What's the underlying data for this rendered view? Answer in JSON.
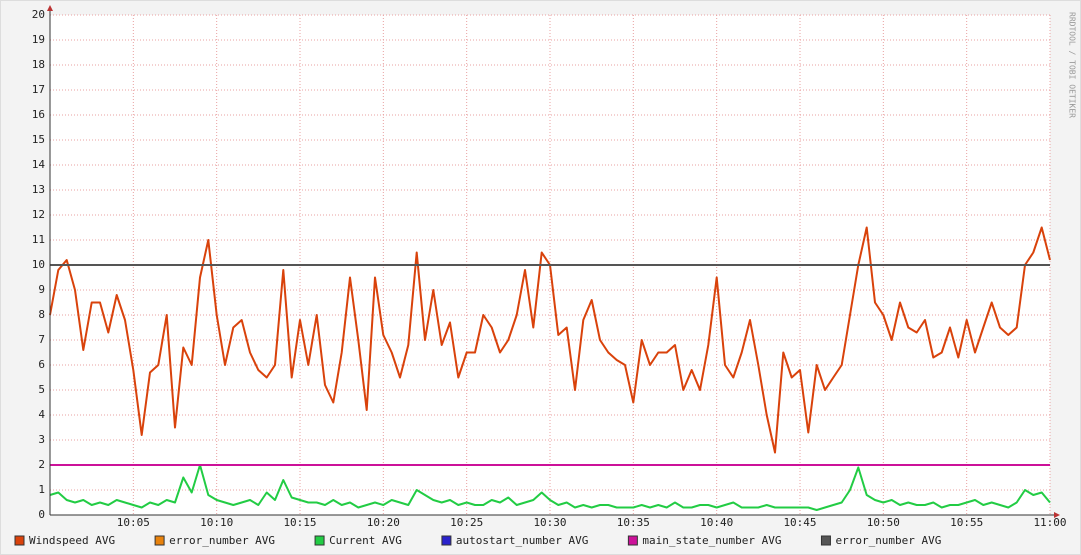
{
  "chart_data": {
    "type": "line",
    "watermark": "RRDTOOL / TOBI OETIKER",
    "xlim": [
      0,
      60
    ],
    "ylim": [
      0,
      20
    ],
    "xticks": [
      {
        "value": 5,
        "label": "10:05"
      },
      {
        "value": 10,
        "label": "10:10"
      },
      {
        "value": 15,
        "label": "10:15"
      },
      {
        "value": 20,
        "label": "10:20"
      },
      {
        "value": 25,
        "label": "10:25"
      },
      {
        "value": 30,
        "label": "10:30"
      },
      {
        "value": 35,
        "label": "10:35"
      },
      {
        "value": 40,
        "label": "10:40"
      },
      {
        "value": 45,
        "label": "10:45"
      },
      {
        "value": 50,
        "label": "10:50"
      },
      {
        "value": 55,
        "label": "10:55"
      },
      {
        "value": 60,
        "label": "11:00"
      }
    ],
    "yticks": [
      0,
      1,
      2,
      3,
      4,
      5,
      6,
      7,
      8,
      9,
      10,
      11,
      12,
      13,
      14,
      15,
      16,
      17,
      18,
      19,
      20
    ],
    "grid": true,
    "legend": "bottom",
    "series": [
      {
        "name": "Windspeed AVG",
        "color": "#d9420b",
        "x": [
          0,
          0.5,
          1,
          1.5,
          2,
          2.5,
          3,
          3.5,
          4,
          4.5,
          5,
          5.5,
          6,
          6.5,
          7,
          7.5,
          8,
          8.5,
          9,
          9.5,
          10,
          10.5,
          11,
          11.5,
          12,
          12.5,
          13,
          13.5,
          14,
          14.5,
          15,
          15.5,
          16,
          16.5,
          17,
          17.5,
          18,
          18.5,
          19,
          19.5,
          20,
          20.5,
          21,
          21.5,
          22,
          22.5,
          23,
          23.5,
          24,
          24.5,
          25,
          25.5,
          26,
          26.5,
          27,
          27.5,
          28,
          28.5,
          29,
          29.5,
          30,
          30.5,
          31,
          31.5,
          32,
          32.5,
          33,
          33.5,
          34,
          34.5,
          35,
          35.5,
          36,
          36.5,
          37,
          37.5,
          38,
          38.5,
          39,
          39.5,
          40,
          40.5,
          41,
          41.5,
          42,
          42.5,
          43,
          43.5,
          44,
          44.5,
          45,
          45.5,
          46,
          46.5,
          47,
          47.5,
          48,
          48.5,
          49,
          49.5,
          50,
          50.5,
          51,
          51.5,
          52,
          52.5,
          53,
          53.5,
          54,
          54.5,
          55,
          55.5,
          56,
          56.5,
          57,
          57.5,
          58,
          58.5,
          59,
          59.5,
          60
        ],
        "values": [
          8,
          9.8,
          10.2,
          9,
          6.6,
          8.5,
          8.5,
          7.3,
          8.8,
          7.8,
          5.8,
          3.2,
          5.7,
          6,
          8,
          3.5,
          6.7,
          6,
          9.5,
          11,
          8,
          6,
          7.5,
          7.8,
          6.5,
          5.8,
          5.5,
          6,
          9.8,
          5.5,
          7.8,
          6,
          8,
          5.2,
          4.5,
          6.5,
          9.5,
          7,
          4.2,
          9.5,
          7.2,
          6.5,
          5.5,
          6.8,
          10.5,
          7,
          9,
          6.8,
          7.7,
          5.5,
          6.5,
          6.5,
          8,
          7.5,
          6.5,
          7,
          8,
          9.8,
          7.5,
          10.5,
          10,
          7.2,
          7.5,
          5,
          7.8,
          8.6,
          7,
          6.5,
          6.2,
          6,
          4.5,
          7,
          6,
          6.5,
          6.5,
          6.8,
          5,
          5.8,
          5,
          6.8,
          9.5,
          6,
          5.5,
          6.5,
          7.8,
          6,
          4,
          2.5,
          6.5,
          5.5,
          5.8,
          3.3,
          6,
          5,
          5.5,
          6,
          8,
          10,
          11.5,
          8.5,
          8,
          7,
          8.5,
          7.5,
          7.3,
          7.8,
          6.3,
          6.5,
          7.5,
          6.3,
          7.8,
          6.5,
          7.5,
          8.5,
          7.5,
          7.2,
          7.5,
          10,
          10.5,
          11.5,
          10.2
        ]
      },
      {
        "name": "error_number AVG",
        "color": "#e8820c"
      },
      {
        "name": "Current AVG",
        "color": "#22cc44",
        "x": [
          0,
          0.5,
          1,
          1.5,
          2,
          2.5,
          3,
          3.5,
          4,
          4.5,
          5,
          5.5,
          6,
          6.5,
          7,
          7.5,
          8,
          8.5,
          9,
          9.5,
          10,
          10.5,
          11,
          11.5,
          12,
          12.5,
          13,
          13.5,
          14,
          14.5,
          15,
          15.5,
          16,
          16.5,
          17,
          17.5,
          18,
          18.5,
          19,
          19.5,
          20,
          20.5,
          21,
          21.5,
          22,
          22.5,
          23,
          23.5,
          24,
          24.5,
          25,
          25.5,
          26,
          26.5,
          27,
          27.5,
          28,
          28.5,
          29,
          29.5,
          30,
          30.5,
          31,
          31.5,
          32,
          32.5,
          33,
          33.5,
          34,
          34.5,
          35,
          35.5,
          36,
          36.5,
          37,
          37.5,
          38,
          38.5,
          39,
          39.5,
          40,
          40.5,
          41,
          41.5,
          42,
          42.5,
          43,
          43.5,
          44,
          44.5,
          45,
          45.5,
          46,
          46.5,
          47,
          47.5,
          48,
          48.5,
          49,
          49.5,
          50,
          50.5,
          51,
          51.5,
          52,
          52.5,
          53,
          53.5,
          54,
          54.5,
          55,
          55.5,
          56,
          56.5,
          57,
          57.5,
          58,
          58.5,
          59,
          59.5,
          60
        ],
        "values": [
          0.8,
          0.9,
          0.6,
          0.5,
          0.6,
          0.4,
          0.5,
          0.4,
          0.6,
          0.5,
          0.4,
          0.3,
          0.5,
          0.4,
          0.6,
          0.5,
          1.5,
          0.9,
          2.0,
          0.8,
          0.6,
          0.5,
          0.4,
          0.5,
          0.6,
          0.4,
          0.9,
          0.6,
          1.4,
          0.7,
          0.6,
          0.5,
          0.5,
          0.4,
          0.6,
          0.4,
          0.5,
          0.3,
          0.4,
          0.5,
          0.4,
          0.6,
          0.5,
          0.4,
          1.0,
          0.8,
          0.6,
          0.5,
          0.6,
          0.4,
          0.5,
          0.4,
          0.4,
          0.6,
          0.5,
          0.7,
          0.4,
          0.5,
          0.6,
          0.9,
          0.6,
          0.4,
          0.5,
          0.3,
          0.4,
          0.3,
          0.4,
          0.4,
          0.3,
          0.3,
          0.3,
          0.4,
          0.3,
          0.4,
          0.3,
          0.5,
          0.3,
          0.3,
          0.4,
          0.4,
          0.3,
          0.4,
          0.5,
          0.3,
          0.3,
          0.3,
          0.4,
          0.3,
          0.3,
          0.3,
          0.3,
          0.3,
          0.2,
          0.3,
          0.4,
          0.5,
          1.0,
          1.9,
          0.8,
          0.6,
          0.5,
          0.6,
          0.4,
          0.5,
          0.4,
          0.4,
          0.5,
          0.3,
          0.4,
          0.4,
          0.5,
          0.6,
          0.4,
          0.5,
          0.4,
          0.3,
          0.5,
          1.0,
          0.8,
          0.9,
          0.5
        ]
      },
      {
        "name": "autostart_number AVG",
        "color": "#2a22cc"
      },
      {
        "name": "main_state_number AVG",
        "color": "#cc1199",
        "x": [
          0,
          60
        ],
        "values": [
          2,
          2
        ]
      },
      {
        "name": "error_number AVG",
        "color": "#555555",
        "x": [
          0,
          60
        ],
        "values": [
          10,
          10
        ]
      }
    ]
  }
}
